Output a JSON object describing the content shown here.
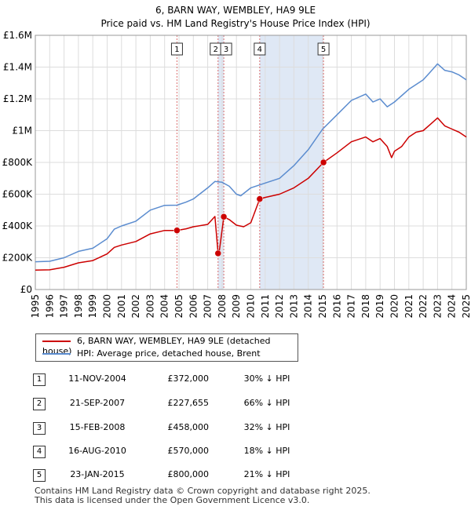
{
  "title_line1": "6, BARN WAY, WEMBLEY, HA9 9LE",
  "title_line2": "Price paid vs. HM Land Registry's House Price Index (HPI)",
  "legend": {
    "red_label": "6, BARN WAY, WEMBLEY, HA9 9LE (detached house)",
    "blue_label": "HPI: Average price, detached house, Brent"
  },
  "colors": {
    "red": "#cc0000",
    "blue": "#5b8ccf",
    "shade": "#dfe8f5",
    "marker": "#cc0000"
  },
  "sales": [
    {
      "num": "1",
      "date": "11-NOV-2004",
      "price": "£372,000",
      "hpi": "30% ↓ HPI"
    },
    {
      "num": "2",
      "date": "21-SEP-2007",
      "price": "£227,655",
      "hpi": "66% ↓ HPI"
    },
    {
      "num": "3",
      "date": "15-FEB-2008",
      "price": "£458,000",
      "hpi": "32% ↓ HPI"
    },
    {
      "num": "4",
      "date": "16-AUG-2010",
      "price": "£570,000",
      "hpi": "18% ↓ HPI"
    },
    {
      "num": "5",
      "date": "23-JAN-2015",
      "price": "£800,000",
      "hpi": "21% ↓ HPI"
    }
  ],
  "footer": {
    "line1": "Contains HM Land Registry data © Crown copyright and database right 2025.",
    "line2": "This data is licensed under the Open Government Licence v3.0."
  },
  "chart_data": {
    "type": "line",
    "title": "6, BARN WAY, WEMBLEY, HA9 9LE — Price paid vs. HM Land Registry's House Price Index (HPI)",
    "xlim": [
      1995,
      2025
    ],
    "ylim": [
      0,
      1600000
    ],
    "x_ticks": [
      1995,
      1996,
      1997,
      1998,
      1999,
      2000,
      2001,
      2002,
      2003,
      2004,
      2005,
      2006,
      2007,
      2008,
      2009,
      2010,
      2011,
      2012,
      2013,
      2014,
      2015,
      2016,
      2017,
      2018,
      2019,
      2020,
      2021,
      2022,
      2023,
      2024,
      2025
    ],
    "y_ticks": [
      0,
      200000,
      400000,
      600000,
      800000,
      1000000,
      1200000,
      1400000,
      1600000
    ],
    "y_tick_labels": [
      "£0",
      "£200K",
      "£400K",
      "£600K",
      "£800K",
      "£1M",
      "£1.2M",
      "£1.4M",
      "£1.6M"
    ],
    "grid": true,
    "shaded_ranges": [
      [
        2007.72,
        2008.12
      ],
      [
        2010.62,
        2015.06
      ]
    ],
    "series": [
      {
        "name": "HPI: Average price, detached house, Brent",
        "color": "#5b8ccf",
        "x": [
          1995.0,
          1996.0,
          1997.0,
          1998.0,
          1999.0,
          2000.0,
          2000.5,
          2001.0,
          2002.0,
          2003.0,
          2004.0,
          2004.86,
          2005.5,
          2006.0,
          2007.0,
          2007.5,
          2008.0,
          2008.5,
          2009.0,
          2009.3,
          2010.0,
          2011.0,
          2012.0,
          2013.0,
          2014.0,
          2015.0,
          2016.0,
          2017.0,
          2018.0,
          2018.5,
          2019.0,
          2019.5,
          2020.0,
          2020.5,
          2021.0,
          2021.5,
          2022.0,
          2022.5,
          2023.0,
          2023.5,
          2024.0,
          2024.5,
          2025.0
        ],
        "y": [
          175000,
          178000,
          200000,
          240000,
          260000,
          320000,
          380000,
          400000,
          430000,
          500000,
          530000,
          531000,
          550000,
          570000,
          640000,
          680000,
          675000,
          650000,
          600000,
          590000,
          640000,
          670000,
          700000,
          780000,
          880000,
          1010000,
          1100000,
          1190000,
          1230000,
          1180000,
          1200000,
          1150000,
          1180000,
          1220000,
          1260000,
          1290000,
          1320000,
          1370000,
          1420000,
          1380000,
          1370000,
          1350000,
          1320000
        ]
      },
      {
        "name": "6, BARN WAY, WEMBLEY, HA9 9LE (detached house)",
        "color": "#cc0000",
        "x": [
          1995.0,
          1996.0,
          1997.0,
          1998.0,
          1999.0,
          2000.0,
          2000.5,
          2001.0,
          2002.0,
          2003.0,
          2004.0,
          2004.86,
          2005.5,
          2006.0,
          2007.0,
          2007.5,
          2007.72,
          2007.8,
          2008.12,
          2008.5,
          2009.0,
          2009.5,
          2010.0,
          2010.62,
          2011.0,
          2012.0,
          2013.0,
          2014.0,
          2015.06,
          2016.0,
          2017.0,
          2018.0,
          2018.5,
          2019.0,
          2019.5,
          2019.8,
          2020.0,
          2020.5,
          2021.0,
          2021.5,
          2022.0,
          2022.5,
          2023.0,
          2023.5,
          2024.0,
          2024.5,
          2025.0
        ],
        "y": [
          122000,
          124000,
          140000,
          168000,
          182000,
          224000,
          265000,
          280000,
          302000,
          350000,
          372000,
          372000,
          382000,
          395000,
          410000,
          460000,
          227655,
          235000,
          458000,
          440000,
          405000,
          395000,
          420000,
          570000,
          580000,
          600000,
          640000,
          700000,
          800000,
          860000,
          930000,
          960000,
          930000,
          950000,
          900000,
          830000,
          870000,
          900000,
          960000,
          990000,
          1000000,
          1040000,
          1080000,
          1030000,
          1010000,
          990000,
          960000
        ]
      }
    ],
    "sale_points": [
      {
        "num": "1",
        "x": 2004.86,
        "y": 372000
      },
      {
        "num": "2",
        "x": 2007.72,
        "y": 227655
      },
      {
        "num": "3",
        "x": 2008.12,
        "y": 458000
      },
      {
        "num": "4",
        "x": 2010.62,
        "y": 570000
      },
      {
        "num": "5",
        "x": 2015.06,
        "y": 800000
      }
    ]
  }
}
